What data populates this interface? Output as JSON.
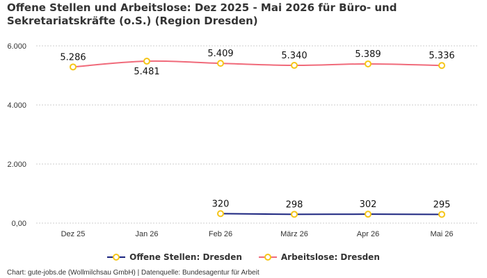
{
  "title": "Offene Stellen und Arbeitslose: Dez 2025 - Mai 2026 für Büro- und Sekretariatskräfte (o.S.) (Region Dresden)",
  "credits": "Chart: gute-jobs.de (Wollmilchsau GmbH) | Datenquelle: Bundesagentur für Arbeit",
  "colors": {
    "offene_stellen": "#1a237e",
    "arbeitslose": "#f06a7a",
    "marker": "#f5c518",
    "grid": "#cccccc"
  },
  "chart_data": {
    "type": "line",
    "categories": [
      "Dez 25",
      "Jan 26",
      "Feb 26",
      "März 26",
      "Apr 26",
      "Mai 26"
    ],
    "y_ticks": [
      "0,00",
      "2.000",
      "4.000",
      "6.000"
    ],
    "ylim": [
      0,
      6000
    ],
    "grid": true,
    "legend_position": "bottom",
    "series": [
      {
        "name": "Offene Stellen: Dresden",
        "values": [
          null,
          null,
          320,
          298,
          302,
          295
        ],
        "labels": [
          "",
          "",
          "320",
          "298",
          "302",
          "295"
        ]
      },
      {
        "name": "Arbeitslose: Dresden",
        "values": [
          5286,
          5481,
          5409,
          5340,
          5389,
          5336
        ],
        "labels": [
          "5.286",
          "5.481",
          "5.409",
          "5.340",
          "5.389",
          "5.336"
        ]
      }
    ]
  }
}
